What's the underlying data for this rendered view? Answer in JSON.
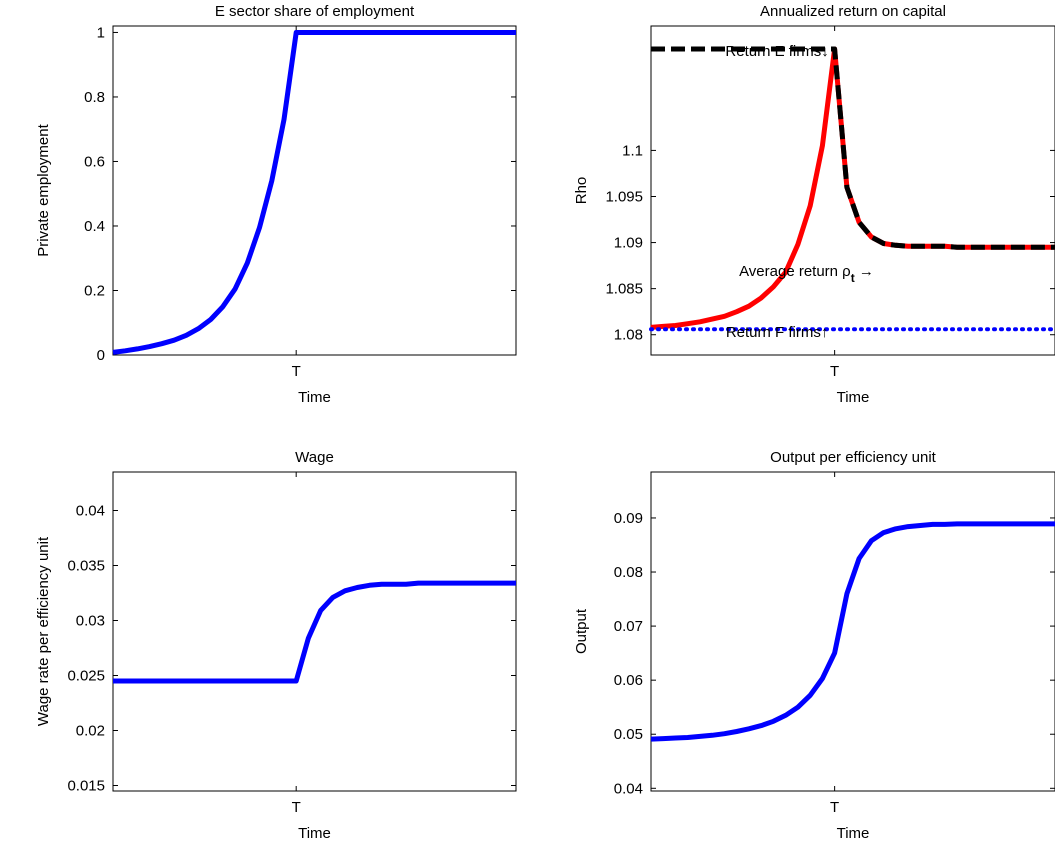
{
  "chart_data": [
    {
      "type": "line",
      "title": "E sector share of employment",
      "xlabel": "Time",
      "ylabel": "Private employment",
      "x_ticks": [
        "T"
      ],
      "ylim": [
        0,
        1.02
      ],
      "y_ticks": [
        "0",
        "0.2",
        "0.4",
        "0.6",
        "0.8",
        "1"
      ],
      "grid": false,
      "x": [
        0,
        1,
        2,
        3,
        4,
        5,
        6,
        7,
        8,
        9,
        10,
        11,
        12,
        13,
        14,
        15,
        16,
        17,
        18,
        19,
        20,
        21,
        22,
        23,
        24,
        25,
        26,
        27,
        28,
        29,
        30,
        31,
        32,
        33
      ],
      "series": [
        {
          "color": "#0000ff",
          "style": "solid",
          "values": [
            0.008,
            0.013,
            0.019,
            0.026,
            0.035,
            0.046,
            0.061,
            0.082,
            0.11,
            0.15,
            0.205,
            0.285,
            0.395,
            0.54,
            0.73,
            1.0,
            1.0,
            1.0,
            1.0,
            1.0,
            1.0,
            1.0,
            1.0,
            1.0,
            1.0,
            1.0,
            1.0,
            1.0,
            1.0,
            1.0,
            1.0,
            1.0,
            1.0,
            1.0
          ]
        }
      ]
    },
    {
      "type": "line",
      "title": "Annualized return on capital",
      "xlabel": "Time",
      "ylabel": "Rho",
      "x_ticks": [
        "T"
      ],
      "ylim": [
        1.0778,
        1.1135
      ],
      "y_ticks": [
        "1.08",
        "1.085",
        "1.09",
        "1.095",
        "1.1"
      ],
      "grid": false,
      "x": [
        0,
        1,
        2,
        3,
        4,
        5,
        6,
        7,
        8,
        9,
        10,
        11,
        12,
        13,
        14,
        15,
        16,
        17,
        18,
        19,
        20,
        21,
        22,
        23,
        24,
        25,
        26,
        27,
        28,
        29,
        30,
        31,
        32,
        33
      ],
      "series": [
        {
          "color": "#ff0000",
          "style": "solid",
          "values": [
            1.0808,
            1.0809,
            1.081,
            1.0812,
            1.0814,
            1.0817,
            1.082,
            1.0825,
            1.0831,
            1.084,
            1.0852,
            1.0868,
            1.0898,
            1.094,
            1.1005,
            1.111,
            1.096,
            1.0922,
            1.0906,
            1.0899,
            1.0897,
            1.0896,
            1.0896,
            1.0896,
            1.0896,
            1.0895,
            1.0895,
            1.0895,
            1.0895,
            1.0895,
            1.0895,
            1.0895,
            1.0895,
            1.0895
          ]
        },
        {
          "color": "#000000",
          "style": "dashed",
          "values": [
            1.111,
            1.111,
            1.111,
            1.111,
            1.111,
            1.111,
            1.111,
            1.111,
            1.111,
            1.111,
            1.111,
            1.111,
            1.111,
            1.111,
            1.111,
            1.111,
            1.096,
            1.0922,
            1.0906,
            1.0899,
            1.0897,
            1.0896,
            1.0896,
            1.0896,
            1.0896,
            1.0895,
            1.0895,
            1.0895,
            1.0895,
            1.0895,
            1.0895,
            1.0895,
            1.0895,
            1.0895
          ]
        },
        {
          "color": "#0000ff",
          "style": "dotted",
          "values": [
            1.0806,
            1.0806,
            1.0806,
            1.0806,
            1.0806,
            1.0806,
            1.0806,
            1.0806,
            1.0806,
            1.0806,
            1.0806,
            1.0806,
            1.0806,
            1.0806,
            1.0806,
            1.0806,
            1.0806,
            1.0806,
            1.0806,
            1.0806,
            1.0806,
            1.0806,
            1.0806,
            1.0806,
            1.0806,
            1.0806,
            1.0806,
            1.0806,
            1.0806,
            1.0806,
            1.0806,
            1.0806,
            1.0806,
            1.0806
          ]
        }
      ],
      "annotations": [
        {
          "text": "Return E firms↓",
          "x": 10.3,
          "y": 1.1108
        },
        {
          "text": "Average return ρ",
          "subscript": "t",
          "arrow": "→",
          "x": 12.7,
          "y": 1.0869
        },
        {
          "text": "Return F firms↑",
          "x": 10.3,
          "y": 1.0803
        }
      ]
    },
    {
      "type": "line",
      "title": "Wage",
      "xlabel": "Time",
      "ylabel": "Wage rate per efficiency unit",
      "x_ticks": [
        "T"
      ],
      "ylim": [
        0.0145,
        0.0435
      ],
      "y_ticks": [
        "0.015",
        "0.02",
        "0.025",
        "0.03",
        "0.035",
        "0.04"
      ],
      "grid": false,
      "x": [
        0,
        1,
        2,
        3,
        4,
        5,
        6,
        7,
        8,
        9,
        10,
        11,
        12,
        13,
        14,
        15,
        16,
        17,
        18,
        19,
        20,
        21,
        22,
        23,
        24,
        25,
        26,
        27,
        28,
        29,
        30,
        31,
        32,
        33
      ],
      "series": [
        {
          "color": "#0000ff",
          "style": "solid",
          "values": [
            0.0245,
            0.0245,
            0.0245,
            0.0245,
            0.0245,
            0.0245,
            0.0245,
            0.0245,
            0.0245,
            0.0245,
            0.0245,
            0.0245,
            0.0245,
            0.0245,
            0.0245,
            0.0245,
            0.0284,
            0.0309,
            0.0321,
            0.0327,
            0.033,
            0.0332,
            0.0333,
            0.0333,
            0.0333,
            0.0334,
            0.0334,
            0.0334,
            0.0334,
            0.0334,
            0.0334,
            0.0334,
            0.0334,
            0.0334
          ]
        }
      ]
    },
    {
      "type": "line",
      "title": "Output per efficiency unit",
      "xlabel": "Time",
      "ylabel": "Output",
      "x_ticks": [
        "T"
      ],
      "ylim": [
        0.0395,
        0.0985
      ],
      "y_ticks": [
        "0.04",
        "0.05",
        "0.06",
        "0.07",
        "0.08",
        "0.09"
      ],
      "grid": false,
      "x": [
        0,
        1,
        2,
        3,
        4,
        5,
        6,
        7,
        8,
        9,
        10,
        11,
        12,
        13,
        14,
        15,
        16,
        17,
        18,
        19,
        20,
        21,
        22,
        23,
        24,
        25,
        26,
        27,
        28,
        29,
        30,
        31,
        32,
        33
      ],
      "series": [
        {
          "color": "#0000ff",
          "style": "solid",
          "values": [
            0.0491,
            0.0492,
            0.0493,
            0.0494,
            0.0496,
            0.0498,
            0.0501,
            0.0505,
            0.051,
            0.0516,
            0.0524,
            0.0535,
            0.055,
            0.0572,
            0.0603,
            0.065,
            0.076,
            0.0825,
            0.0858,
            0.0873,
            0.088,
            0.0884,
            0.0886,
            0.0888,
            0.0888,
            0.0889,
            0.0889,
            0.0889,
            0.0889,
            0.0889,
            0.0889,
            0.0889,
            0.0889,
            0.0889
          ]
        }
      ]
    }
  ]
}
